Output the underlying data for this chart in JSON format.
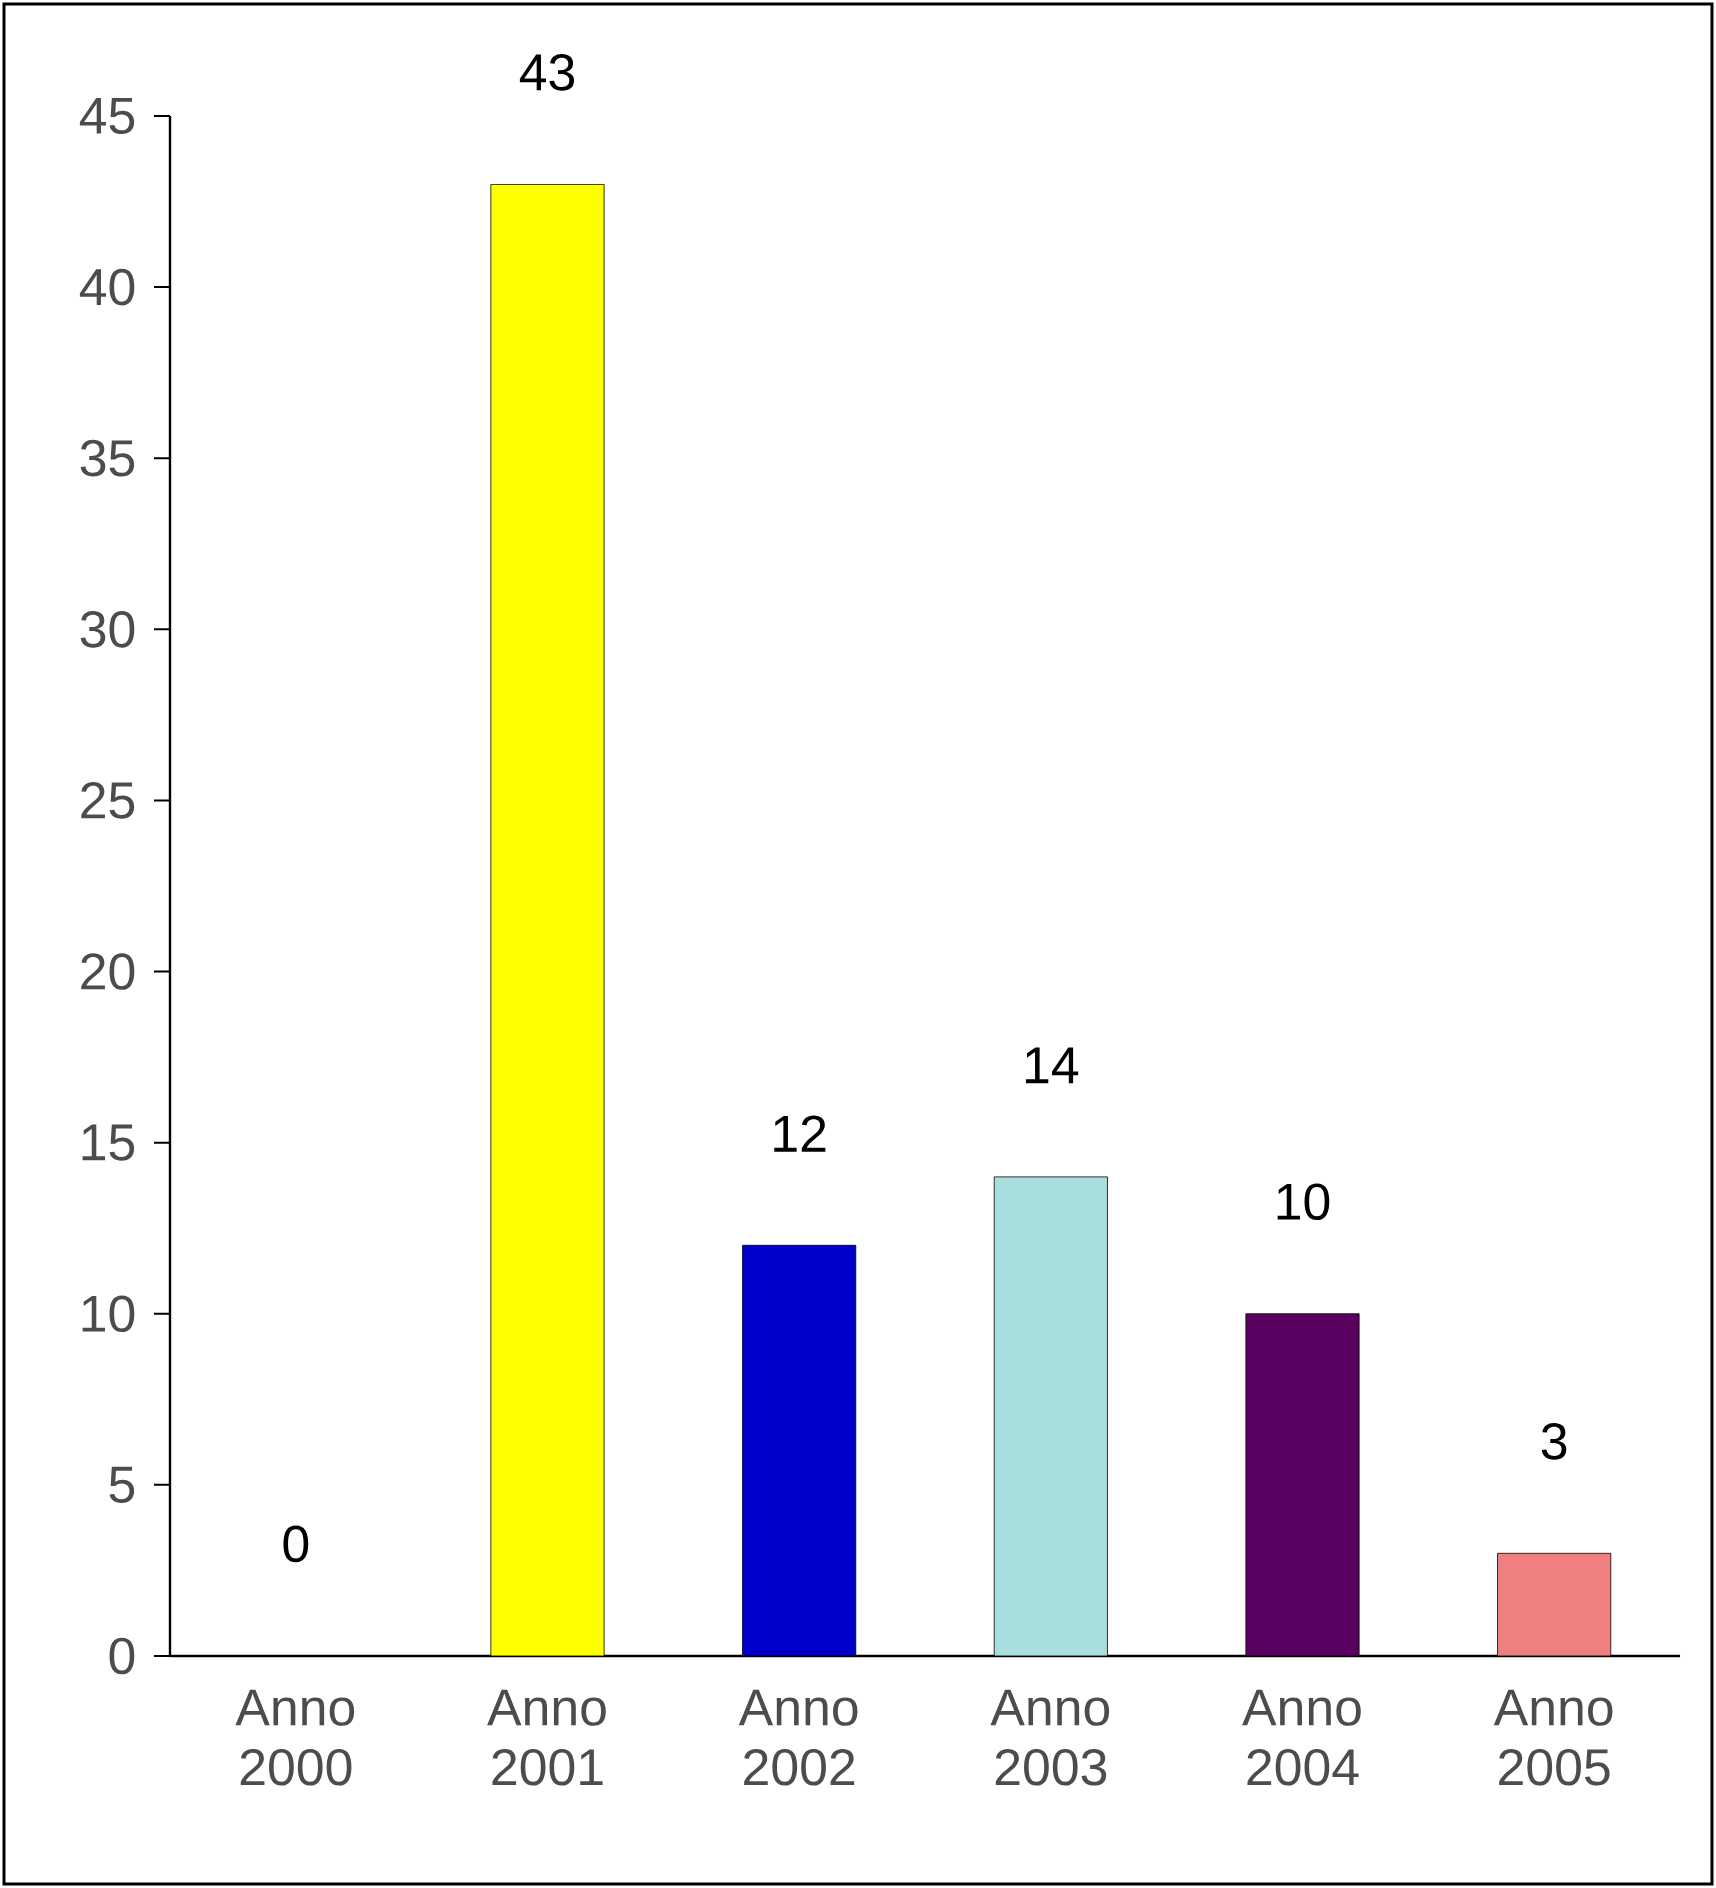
{
  "chart_data": {
    "type": "bar",
    "categories": [
      "Anno 2000",
      "Anno 2001",
      "Anno 2002",
      "Anno 2003",
      "Anno 2004",
      "Anno 2005"
    ],
    "values": [
      0,
      43,
      12,
      14,
      10,
      3
    ],
    "colors": [
      "#cc0000",
      "#ffff00",
      "#0000cc",
      "#a8dede",
      "#5a0060",
      "#f08080"
    ],
    "ylim": [
      0,
      45
    ],
    "yticks": [
      0,
      5,
      10,
      15,
      20,
      25,
      30,
      35,
      40,
      45
    ],
    "data_labels": true,
    "grid": false
  }
}
